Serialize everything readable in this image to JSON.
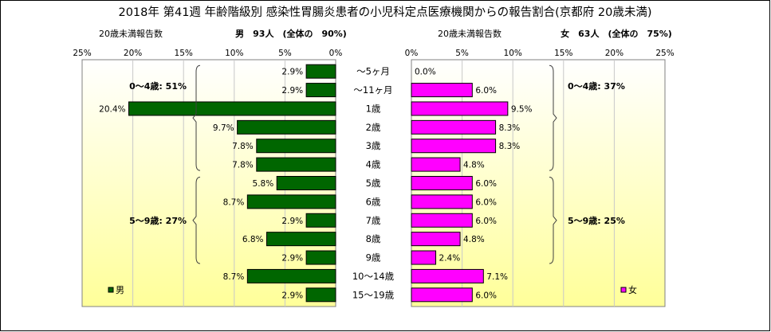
{
  "title": "2018年 第41週 年齢階級別 感染性胃腸炎患者の小児科定点医療機関からの報告割合(京都府 20歳未満)",
  "colors": {
    "male_bar": "#006600",
    "female_bar": "#ff00ff",
    "plot_bg_top": "#ffffff",
    "plot_bg_bottom": "#ffff99",
    "grid": "#c8c8c8",
    "border": "#000000"
  },
  "chart_data": [
    {
      "type": "bar",
      "orientation": "horizontal",
      "direction": "right-to-left",
      "header_left": "20歳未満報告数",
      "header_right": "男　93人　(全体の　90%)",
      "xlim": [
        0,
        25
      ],
      "x_ticks": [
        "25%",
        "20%",
        "15%",
        "10%",
        "5%",
        "0%"
      ],
      "categories": [
        "～5ヶ月",
        "～11ヶ月",
        "1歳",
        "2歳",
        "3歳",
        "4歳",
        "5歳",
        "6歳",
        "7歳",
        "8歳",
        "9歳",
        "10～14歳",
        "15～19歳"
      ],
      "series": [
        {
          "name": "男",
          "values": [
            2.9,
            2.9,
            20.4,
            9.7,
            7.8,
            7.8,
            5.8,
            8.7,
            2.9,
            6.8,
            2.9,
            8.7,
            2.9
          ],
          "labels": [
            "2.9%",
            "2.9%",
            "20.4%",
            "9.7%",
            "7.8%",
            "7.8%",
            "5.8%",
            "8.7%",
            "2.9%",
            "6.8%",
            "2.9%",
            "8.7%",
            "2.9%"
          ]
        }
      ],
      "brackets": [
        {
          "label": "0～4歳: 51%",
          "from": 0,
          "to": 5
        },
        {
          "label": "5～9歳: 27%",
          "from": 6,
          "to": 10
        }
      ],
      "legend": {
        "label": "男",
        "placement": "bottom-left"
      }
    },
    {
      "type": "bar",
      "orientation": "horizontal",
      "direction": "left-to-right",
      "header_left": "20歳未満報告数",
      "header_right": "女　63人　(全体の　75%)",
      "xlim": [
        0,
        25
      ],
      "x_ticks": [
        "0%",
        "5%",
        "10%",
        "15%",
        "20%",
        "25%"
      ],
      "categories": [
        "～5ヶ月",
        "～11ヶ月",
        "1歳",
        "2歳",
        "3歳",
        "4歳",
        "5歳",
        "6歳",
        "7歳",
        "8歳",
        "9歳",
        "10～14歳",
        "15～19歳"
      ],
      "series": [
        {
          "name": "女",
          "values": [
            0.0,
            6.0,
            9.5,
            8.3,
            8.3,
            4.8,
            6.0,
            6.0,
            6.0,
            4.8,
            2.4,
            7.1,
            6.0
          ],
          "labels": [
            "0.0%",
            "6.0%",
            "9.5%",
            "8.3%",
            "8.3%",
            "4.8%",
            "6.0%",
            "6.0%",
            "6.0%",
            "4.8%",
            "2.4%",
            "7.1%",
            "6.0%"
          ]
        }
      ],
      "brackets": [
        {
          "label": "0～4歳: 37%",
          "from": 0,
          "to": 5
        },
        {
          "label": "5～9歳: 25%",
          "from": 6,
          "to": 10
        }
      ],
      "legend": {
        "label": "女",
        "placement": "bottom-right"
      }
    }
  ]
}
